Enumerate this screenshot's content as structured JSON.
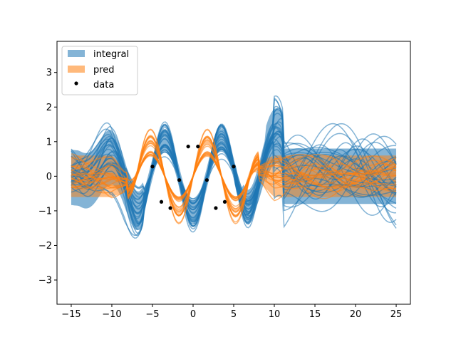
{
  "chart_data": {
    "type": "line",
    "title": "",
    "xlabel": "",
    "ylabel": "",
    "xlim": [
      -16.75,
      26.75
    ],
    "ylim": [
      -3.7,
      3.9
    ],
    "xticks": [
      -15,
      -10,
      -5,
      0,
      5,
      10,
      15,
      20,
      25
    ],
    "yticks": [
      -3,
      -2,
      -1,
      0,
      1,
      2,
      3
    ],
    "tick_labels_x": [
      "−15",
      "−10",
      "−5",
      "0",
      "5",
      "10",
      "15",
      "20",
      "25"
    ],
    "tick_labels_y": [
      "−3",
      "−2",
      "−1",
      "0",
      "1",
      "2",
      "3"
    ],
    "legend": {
      "placement": "upper-left",
      "entries": [
        {
          "label": "integral",
          "kind": "band",
          "color": "#1f77b4"
        },
        {
          "label": "pred",
          "kind": "band",
          "color": "#ff7f0e"
        },
        {
          "label": "data",
          "kind": "marker",
          "color": "#000000"
        }
      ]
    },
    "series": [
      {
        "name": "data",
        "kind": "scatter",
        "color": "#000000",
        "x": [
          -5.0,
          -3.9,
          -2.8,
          -1.7,
          -0.6,
          0.6,
          1.7,
          2.8,
          3.9,
          5.0
        ],
        "y": [
          0.28,
          -0.74,
          -0.92,
          -0.11,
          0.86,
          0.86,
          -0.11,
          -0.92,
          -0.74,
          0.28
        ]
      },
      {
        "name": "pred",
        "kind": "band+samples",
        "color": "#ff7f0e",
        "x_range": [
          -15,
          25
        ],
        "mean_formula": "sin(0.9x) within data region, decaying to 0 outside",
        "band_halfwidth_outside": 0.6,
        "sample_count": 20
      },
      {
        "name": "integral",
        "kind": "band+samples",
        "color": "#1f77b4",
        "x_range": [
          -15,
          25
        ],
        "mean_formula": "-cos(0.9x)*1.1 envelope, peak near 8.5 with value 1.5",
        "band_halfwidth_outside": 0.8,
        "sample_count": 30
      }
    ]
  }
}
